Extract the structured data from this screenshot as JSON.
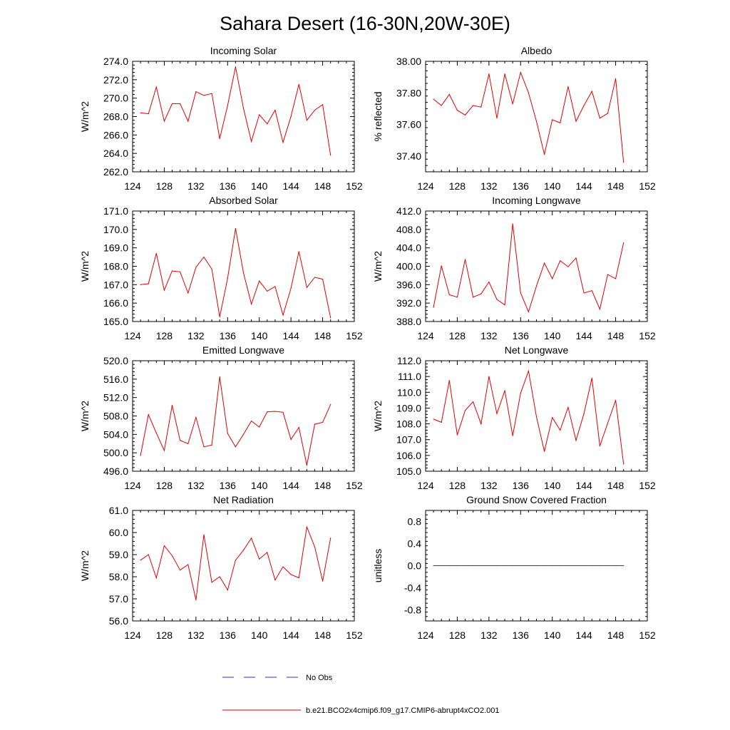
{
  "title": "Sahara Desert (16-30N,20W-30E)",
  "colors": {
    "model": "#e00000",
    "obs": "#3030c0",
    "axis": "#000000"
  },
  "chart_data": [
    {
      "type": "line",
      "title": "Incoming Solar",
      "ylabel": "W/m^2",
      "xlim": [
        124,
        152
      ],
      "ylim": [
        262,
        274
      ],
      "xticks": [
        "124",
        "128",
        "132",
        "136",
        "140",
        "144",
        "148",
        "152"
      ],
      "yticks": [
        "262.0",
        "264.0",
        "266.0",
        "268.0",
        "270.0",
        "272.0",
        "274.0"
      ],
      "series": [
        {
          "name": "b.e21.BCO2x4cmip6.f09_g17.CMIP6-abrupt4xCO2.001",
          "x": [
            125,
            126,
            127,
            128,
            129,
            130,
            131,
            132,
            133,
            134,
            135,
            136,
            137,
            138,
            139,
            140,
            141,
            142,
            143,
            144,
            145,
            146,
            147,
            148,
            149
          ],
          "values": [
            268.4,
            268.3,
            271.2,
            267.5,
            269.4,
            269.4,
            267.5,
            270.7,
            270.3,
            270.5,
            265.6,
            269.2,
            273.4,
            268.9,
            265.3,
            268.2,
            267.2,
            268.7,
            265.2,
            268.0,
            271.5,
            267.6,
            268.7,
            269.3,
            263.8
          ]
        }
      ]
    },
    {
      "type": "line",
      "title": "Albedo",
      "ylabel": "% reflected",
      "xlim": [
        124,
        152
      ],
      "ylim": [
        37.3,
        38.0
      ],
      "xticks": [
        "124",
        "128",
        "132",
        "136",
        "140",
        "144",
        "148",
        "152"
      ],
      "yticks": [
        "37.40",
        "37.60",
        "37.80",
        "38.00"
      ],
      "ytick_values": [
        37.4,
        37.6,
        37.8,
        38.0
      ],
      "series": [
        {
          "name": "b.e21.BCO2x4cmip6.f09_g17.CMIP6-abrupt4xCO2.001",
          "x": [
            125,
            126,
            127,
            128,
            129,
            130,
            131,
            132,
            133,
            134,
            135,
            136,
            137,
            138,
            139,
            140,
            141,
            142,
            143,
            144,
            145,
            146,
            147,
            148,
            149
          ],
          "values": [
            37.76,
            37.72,
            37.79,
            37.69,
            37.66,
            37.72,
            37.71,
            37.92,
            37.64,
            37.92,
            37.73,
            37.93,
            37.8,
            37.62,
            37.41,
            37.63,
            37.61,
            37.84,
            37.62,
            37.72,
            37.81,
            37.64,
            37.67,
            37.89,
            37.36
          ]
        }
      ]
    },
    {
      "type": "line",
      "title": "Absorbed Solar",
      "ylabel": "W/m^2",
      "xlim": [
        124,
        152
      ],
      "ylim": [
        165,
        171
      ],
      "xticks": [
        "124",
        "128",
        "132",
        "136",
        "140",
        "144",
        "148",
        "152"
      ],
      "yticks": [
        "165.0",
        "166.0",
        "167.0",
        "168.0",
        "169.0",
        "170.0",
        "171.0"
      ],
      "series": [
        {
          "name": "b.e21.BCO2x4cmip6.f09_g17.CMIP6-abrupt4xCO2.001",
          "x": [
            125,
            126,
            127,
            128,
            129,
            130,
            131,
            132,
            133,
            134,
            135,
            136,
            137,
            138,
            139,
            140,
            141,
            142,
            143,
            144,
            145,
            146,
            147,
            148,
            149
          ],
          "values": [
            167.0,
            167.05,
            168.7,
            166.7,
            167.75,
            167.7,
            166.55,
            167.95,
            168.5,
            167.85,
            165.25,
            167.35,
            170.05,
            167.65,
            165.95,
            167.2,
            166.65,
            166.9,
            165.35,
            166.8,
            168.8,
            166.85,
            167.4,
            167.3,
            165.2
          ]
        }
      ]
    },
    {
      "type": "line",
      "title": "Incoming Longwave",
      "ylabel": "W/m^2",
      "xlim": [
        124,
        152
      ],
      "ylim": [
        388,
        412
      ],
      "xticks": [
        "124",
        "128",
        "132",
        "136",
        "140",
        "144",
        "148",
        "152"
      ],
      "yticks": [
        "388.0",
        "392.0",
        "396.0",
        "400.0",
        "404.0",
        "408.0",
        "412.0"
      ],
      "series": [
        {
          "name": "b.e21.BCO2x4cmip6.f09_g17.CMIP6-abrupt4xCO2.001",
          "x": [
            125,
            126,
            127,
            128,
            129,
            130,
            131,
            132,
            133,
            134,
            135,
            136,
            137,
            138,
            139,
            140,
            141,
            142,
            143,
            144,
            145,
            146,
            147,
            148,
            149
          ],
          "values": [
            391.1,
            400.1,
            393.8,
            393.3,
            401.5,
            393.3,
            394.0,
            396.6,
            392.8,
            391.6,
            409.2,
            394.2,
            390.1,
            395.7,
            400.7,
            397.3,
            401.2,
            399.9,
            401.8,
            394.2,
            394.7,
            390.7,
            398.2,
            397.3,
            405.1
          ]
        }
      ]
    },
    {
      "type": "line",
      "title": "Emitted Longwave",
      "ylabel": "W/m^2",
      "xlim": [
        124,
        152
      ],
      "ylim": [
        496,
        520
      ],
      "xticks": [
        "124",
        "128",
        "132",
        "136",
        "140",
        "144",
        "148",
        "152"
      ],
      "yticks": [
        "496.0",
        "500.0",
        "504.0",
        "508.0",
        "512.0",
        "516.0",
        "520.0"
      ],
      "series": [
        {
          "name": "b.e21.BCO2x4cmip6.f09_g17.CMIP6-abrupt4xCO2.001",
          "x": [
            125,
            126,
            127,
            128,
            129,
            130,
            131,
            132,
            133,
            134,
            135,
            136,
            137,
            138,
            139,
            140,
            141,
            142,
            143,
            144,
            145,
            146,
            147,
            148,
            149
          ],
          "values": [
            499.4,
            508.3,
            504.3,
            500.5,
            510.3,
            502.7,
            502.0,
            507.7,
            501.3,
            501.7,
            516.5,
            504.2,
            501.3,
            504.0,
            506.9,
            505.6,
            508.9,
            509.0,
            508.8,
            502.9,
            505.5,
            497.3,
            506.2,
            506.6,
            510.5
          ]
        }
      ]
    },
    {
      "type": "line",
      "title": "Net Longwave",
      "ylabel": "W/m^2",
      "xlim": [
        124,
        152
      ],
      "ylim": [
        105,
        112
      ],
      "xticks": [
        "124",
        "128",
        "132",
        "136",
        "140",
        "144",
        "148",
        "152"
      ],
      "yticks": [
        "105.0",
        "106.0",
        "107.0",
        "108.0",
        "109.0",
        "110.0",
        "111.0",
        "112.0"
      ],
      "series": [
        {
          "name": "b.e21.BCO2x4cmip6.f09_g17.CMIP6-abrupt4xCO2.001",
          "x": [
            125,
            126,
            127,
            128,
            129,
            130,
            131,
            132,
            133,
            134,
            135,
            136,
            137,
            138,
            139,
            140,
            141,
            142,
            143,
            144,
            145,
            146,
            147,
            148,
            149
          ],
          "values": [
            108.3,
            108.1,
            110.75,
            107.3,
            108.85,
            109.4,
            108.0,
            111.0,
            108.65,
            110.1,
            107.25,
            109.95,
            111.35,
            108.45,
            106.25,
            108.4,
            107.6,
            109.05,
            106.95,
            108.65,
            110.9,
            106.6,
            108.05,
            109.5,
            105.45
          ]
        }
      ]
    },
    {
      "type": "line",
      "title": "Net Radiation",
      "ylabel": "W/m^2",
      "xlim": [
        124,
        152
      ],
      "ylim": [
        56,
        61
      ],
      "xticks": [
        "124",
        "128",
        "132",
        "136",
        "140",
        "144",
        "148",
        "152"
      ],
      "yticks": [
        "56.0",
        "57.0",
        "58.0",
        "59.0",
        "60.0",
        "61.0"
      ],
      "series": [
        {
          "name": "b.e21.BCO2x4cmip6.f09_g17.CMIP6-abrupt4xCO2.001",
          "x": [
            125,
            126,
            127,
            128,
            129,
            130,
            131,
            132,
            133,
            134,
            135,
            136,
            137,
            138,
            139,
            140,
            141,
            142,
            143,
            144,
            145,
            146,
            147,
            148,
            149
          ],
          "values": [
            58.75,
            59.0,
            57.95,
            59.4,
            58.95,
            58.3,
            58.55,
            56.95,
            59.9,
            57.75,
            58.0,
            57.4,
            58.75,
            59.2,
            59.75,
            58.8,
            59.1,
            57.85,
            58.45,
            58.1,
            57.95,
            60.25,
            59.35,
            57.8,
            59.75
          ]
        }
      ]
    },
    {
      "type": "line",
      "title": "Ground Snow Covered Fraction",
      "ylabel": "unitless",
      "xlim": [
        124,
        152
      ],
      "ylim": [
        -1.0,
        1.0
      ],
      "xticks": [
        "124",
        "128",
        "132",
        "136",
        "140",
        "144",
        "148",
        "152"
      ],
      "yticks": [
        "-0.8",
        "-0.4",
        "0.0",
        "0.4",
        "0.8"
      ],
      "ytick_values": [
        -0.8,
        -0.4,
        0.0,
        0.4,
        0.8
      ],
      "series": [
        {
          "name": "b.e21.BCO2x4cmip6.f09_g17.CMIP6-abrupt4xCO2.001",
          "x": [
            125,
            126,
            127,
            128,
            129,
            130,
            131,
            132,
            133,
            134,
            135,
            136,
            137,
            138,
            139,
            140,
            141,
            142,
            143,
            144,
            145,
            146,
            147,
            148,
            149
          ],
          "values": [
            0,
            0,
            0,
            0,
            0,
            0,
            0,
            0,
            0,
            0,
            0,
            0,
            0,
            0,
            0,
            0,
            0,
            0,
            0,
            0,
            0,
            0,
            0,
            0,
            0
          ]
        }
      ]
    }
  ],
  "legend": [
    {
      "label": "No Obs",
      "style": "dashed",
      "color": "#3030c0"
    },
    {
      "label": "b.e21.BCO2x4cmip6.f09_g17.CMIP6-abrupt4xCO2.001",
      "style": "solid",
      "color": "#e00000"
    }
  ]
}
